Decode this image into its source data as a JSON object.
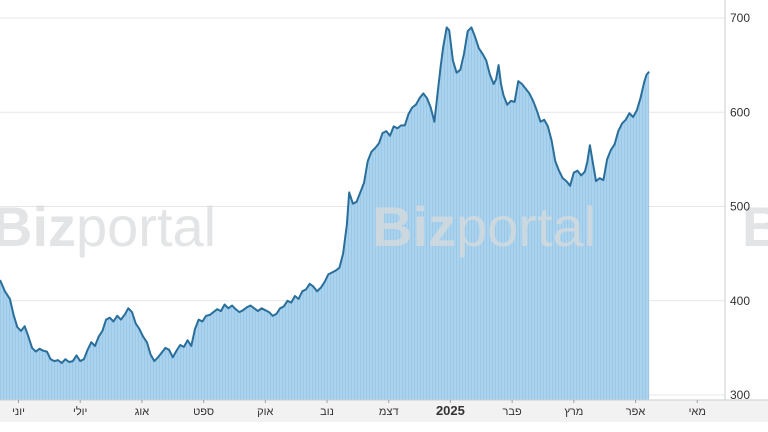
{
  "colors": {
    "line": "#2a6f9b",
    "area": "#a9d3ef",
    "area_stripe": "#9cc7e4",
    "grid": "#e3e7ea",
    "axis_bg": "#f2f2f2",
    "watermark": "#d9dbdd"
  },
  "watermark": {
    "brand_bold": "Biz",
    "brand_light": "portal"
  },
  "chart_data": {
    "type": "area",
    "title": "",
    "xlabel": "",
    "ylabel": "",
    "ylim": [
      300,
      720
    ],
    "grid": true,
    "y_ticks": [
      "300",
      "400",
      "500",
      "600",
      "700"
    ],
    "y_tick_values": [
      300,
      400,
      500,
      600,
      700
    ],
    "x_ticks": [
      {
        "label": "יוני",
        "month_index": 0.3
      },
      {
        "label": "יולי",
        "month_index": 1.3
      },
      {
        "label": "אוג",
        "month_index": 2.3
      },
      {
        "label": "ספט",
        "month_index": 3.3
      },
      {
        "label": "אוק",
        "month_index": 4.3
      },
      {
        "label": "נוב",
        "month_index": 5.3
      },
      {
        "label": "דצמ",
        "month_index": 6.3
      },
      {
        "label": "2025",
        "month_index": 7.3,
        "emphasis": true
      },
      {
        "label": "פבר",
        "month_index": 8.3
      },
      {
        "label": "מרץ",
        "month_index": 9.3
      },
      {
        "label": "אפר",
        "month_index": 10.3
      },
      {
        "label": "מאי",
        "month_index": 11.3
      }
    ],
    "x_range_months": [
      0,
      11.75
    ],
    "series": [
      {
        "points": [
          [
            0.0,
            422
          ],
          [
            0.08,
            410
          ],
          [
            0.16,
            402
          ],
          [
            0.22,
            385
          ],
          [
            0.28,
            372
          ],
          [
            0.34,
            368
          ],
          [
            0.4,
            373
          ],
          [
            0.46,
            362
          ],
          [
            0.52,
            350
          ],
          [
            0.58,
            346
          ],
          [
            0.64,
            349
          ],
          [
            0.7,
            347
          ],
          [
            0.76,
            346
          ],
          [
            0.82,
            338
          ],
          [
            0.88,
            336
          ],
          [
            0.94,
            337
          ],
          [
            1.0,
            334
          ],
          [
            1.06,
            338
          ],
          [
            1.12,
            335
          ],
          [
            1.18,
            336
          ],
          [
            1.24,
            342
          ],
          [
            1.3,
            336
          ],
          [
            1.36,
            338
          ],
          [
            1.42,
            348
          ],
          [
            1.48,
            356
          ],
          [
            1.54,
            352
          ],
          [
            1.6,
            362
          ],
          [
            1.66,
            368
          ],
          [
            1.72,
            380
          ],
          [
            1.78,
            382
          ],
          [
            1.84,
            378
          ],
          [
            1.9,
            384
          ],
          [
            1.96,
            380
          ],
          [
            2.02,
            385
          ],
          [
            2.08,
            392
          ],
          [
            2.14,
            388
          ],
          [
            2.2,
            376
          ],
          [
            2.26,
            370
          ],
          [
            2.32,
            362
          ],
          [
            2.38,
            356
          ],
          [
            2.44,
            343
          ],
          [
            2.5,
            336
          ],
          [
            2.56,
            340
          ],
          [
            2.62,
            345
          ],
          [
            2.68,
            350
          ],
          [
            2.74,
            348
          ],
          [
            2.8,
            340
          ],
          [
            2.86,
            347
          ],
          [
            2.92,
            353
          ],
          [
            2.98,
            351
          ],
          [
            3.04,
            358
          ],
          [
            3.1,
            352
          ],
          [
            3.16,
            370
          ],
          [
            3.22,
            380
          ],
          [
            3.28,
            378
          ],
          [
            3.34,
            384
          ],
          [
            3.4,
            385
          ],
          [
            3.46,
            388
          ],
          [
            3.52,
            391
          ],
          [
            3.58,
            389
          ],
          [
            3.64,
            396
          ],
          [
            3.7,
            392
          ],
          [
            3.76,
            395
          ],
          [
            3.82,
            391
          ],
          [
            3.88,
            388
          ],
          [
            3.94,
            390
          ],
          [
            4.0,
            393
          ],
          [
            4.06,
            395
          ],
          [
            4.12,
            392
          ],
          [
            4.18,
            389
          ],
          [
            4.24,
            392
          ],
          [
            4.3,
            390
          ],
          [
            4.36,
            388
          ],
          [
            4.42,
            384
          ],
          [
            4.48,
            386
          ],
          [
            4.54,
            392
          ],
          [
            4.6,
            394
          ],
          [
            4.66,
            400
          ],
          [
            4.72,
            398
          ],
          [
            4.78,
            405
          ],
          [
            4.84,
            402
          ],
          [
            4.9,
            410
          ],
          [
            4.96,
            412
          ],
          [
            5.02,
            418
          ],
          [
            5.08,
            415
          ],
          [
            5.14,
            410
          ],
          [
            5.2,
            414
          ],
          [
            5.26,
            420
          ],
          [
            5.32,
            428
          ],
          [
            5.38,
            430
          ],
          [
            5.44,
            432
          ],
          [
            5.5,
            435
          ],
          [
            5.56,
            450
          ],
          [
            5.62,
            480
          ],
          [
            5.66,
            515
          ],
          [
            5.72,
            503
          ],
          [
            5.78,
            505
          ],
          [
            5.84,
            515
          ],
          [
            5.9,
            525
          ],
          [
            5.96,
            548
          ],
          [
            6.02,
            558
          ],
          [
            6.08,
            562
          ],
          [
            6.14,
            567
          ],
          [
            6.2,
            578
          ],
          [
            6.26,
            580
          ],
          [
            6.32,
            575
          ],
          [
            6.38,
            585
          ],
          [
            6.44,
            583
          ],
          [
            6.5,
            586
          ],
          [
            6.56,
            586
          ],
          [
            6.62,
            598
          ],
          [
            6.68,
            605
          ],
          [
            6.74,
            608
          ],
          [
            6.8,
            615
          ],
          [
            6.86,
            620
          ],
          [
            6.92,
            615
          ],
          [
            6.98,
            605
          ],
          [
            7.04,
            590
          ],
          [
            7.1,
            625
          ],
          [
            7.14,
            648
          ],
          [
            7.18,
            668
          ],
          [
            7.24,
            690
          ],
          [
            7.28,
            687
          ],
          [
            7.34,
            655
          ],
          [
            7.4,
            642
          ],
          [
            7.46,
            645
          ],
          [
            7.52,
            662
          ],
          [
            7.58,
            686
          ],
          [
            7.64,
            690
          ],
          [
            7.7,
            680
          ],
          [
            7.76,
            668
          ],
          [
            7.82,
            662
          ],
          [
            7.88,
            655
          ],
          [
            7.94,
            640
          ],
          [
            8.0,
            630
          ],
          [
            8.04,
            635
          ],
          [
            8.08,
            650
          ],
          [
            8.12,
            630
          ],
          [
            8.16,
            618
          ],
          [
            8.22,
            608
          ],
          [
            8.28,
            612
          ],
          [
            8.34,
            611
          ],
          [
            8.4,
            633
          ],
          [
            8.46,
            630
          ],
          [
            8.52,
            625
          ],
          [
            8.58,
            620
          ],
          [
            8.64,
            612
          ],
          [
            8.7,
            602
          ],
          [
            8.76,
            590
          ],
          [
            8.82,
            592
          ],
          [
            8.88,
            585
          ],
          [
            8.94,
            570
          ],
          [
            9.0,
            548
          ],
          [
            9.06,
            538
          ],
          [
            9.12,
            530
          ],
          [
            9.18,
            527
          ],
          [
            9.24,
            522
          ],
          [
            9.3,
            536
          ],
          [
            9.36,
            538
          ],
          [
            9.42,
            533
          ],
          [
            9.48,
            537
          ],
          [
            9.52,
            548
          ],
          [
            9.56,
            565
          ],
          [
            9.6,
            550
          ],
          [
            9.66,
            527
          ],
          [
            9.72,
            530
          ],
          [
            9.78,
            528
          ],
          [
            9.84,
            550
          ],
          [
            9.9,
            560
          ],
          [
            9.96,
            566
          ],
          [
            10.02,
            580
          ],
          [
            10.08,
            588
          ],
          [
            10.14,
            592
          ],
          [
            10.2,
            599
          ],
          [
            10.26,
            595
          ],
          [
            10.32,
            602
          ],
          [
            10.38,
            615
          ],
          [
            10.44,
            632
          ],
          [
            10.48,
            640
          ],
          [
            10.52,
            643
          ]
        ]
      }
    ]
  }
}
